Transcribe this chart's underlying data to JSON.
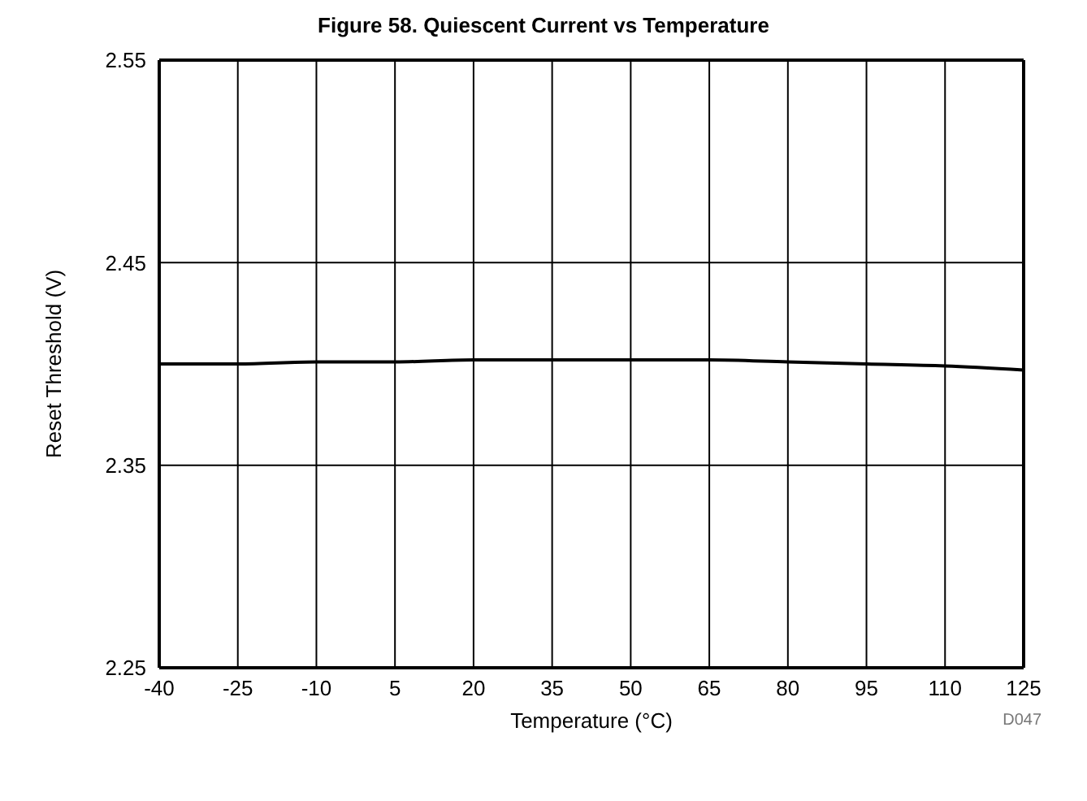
{
  "chart_data": {
    "type": "line",
    "title": "Figure 58. Quiescent Current vs Temperature",
    "xlabel": "Temperature (°C)",
    "ylabel": "Reset Threshold (V)",
    "annotations": [
      "D047"
    ],
    "x": [
      -40,
      -25,
      -10,
      5,
      20,
      35,
      50,
      65,
      80,
      95,
      110,
      125
    ],
    "series": [
      {
        "color": "#000000",
        "values": [
          2.4,
          2.4,
          2.401,
          2.401,
          2.402,
          2.402,
          2.402,
          2.402,
          2.401,
          2.4,
          2.399,
          2.397
        ]
      }
    ],
    "xlim": [
      -40,
      125
    ],
    "xticks": [
      -40,
      -25,
      -10,
      5,
      20,
      35,
      50,
      65,
      80,
      95,
      110,
      125
    ],
    "ylim": [
      2.25,
      2.55
    ],
    "yticks": [
      2.25,
      2.35,
      2.45,
      2.55
    ],
    "grid": true,
    "marker": "none",
    "line_style": "solid"
  }
}
